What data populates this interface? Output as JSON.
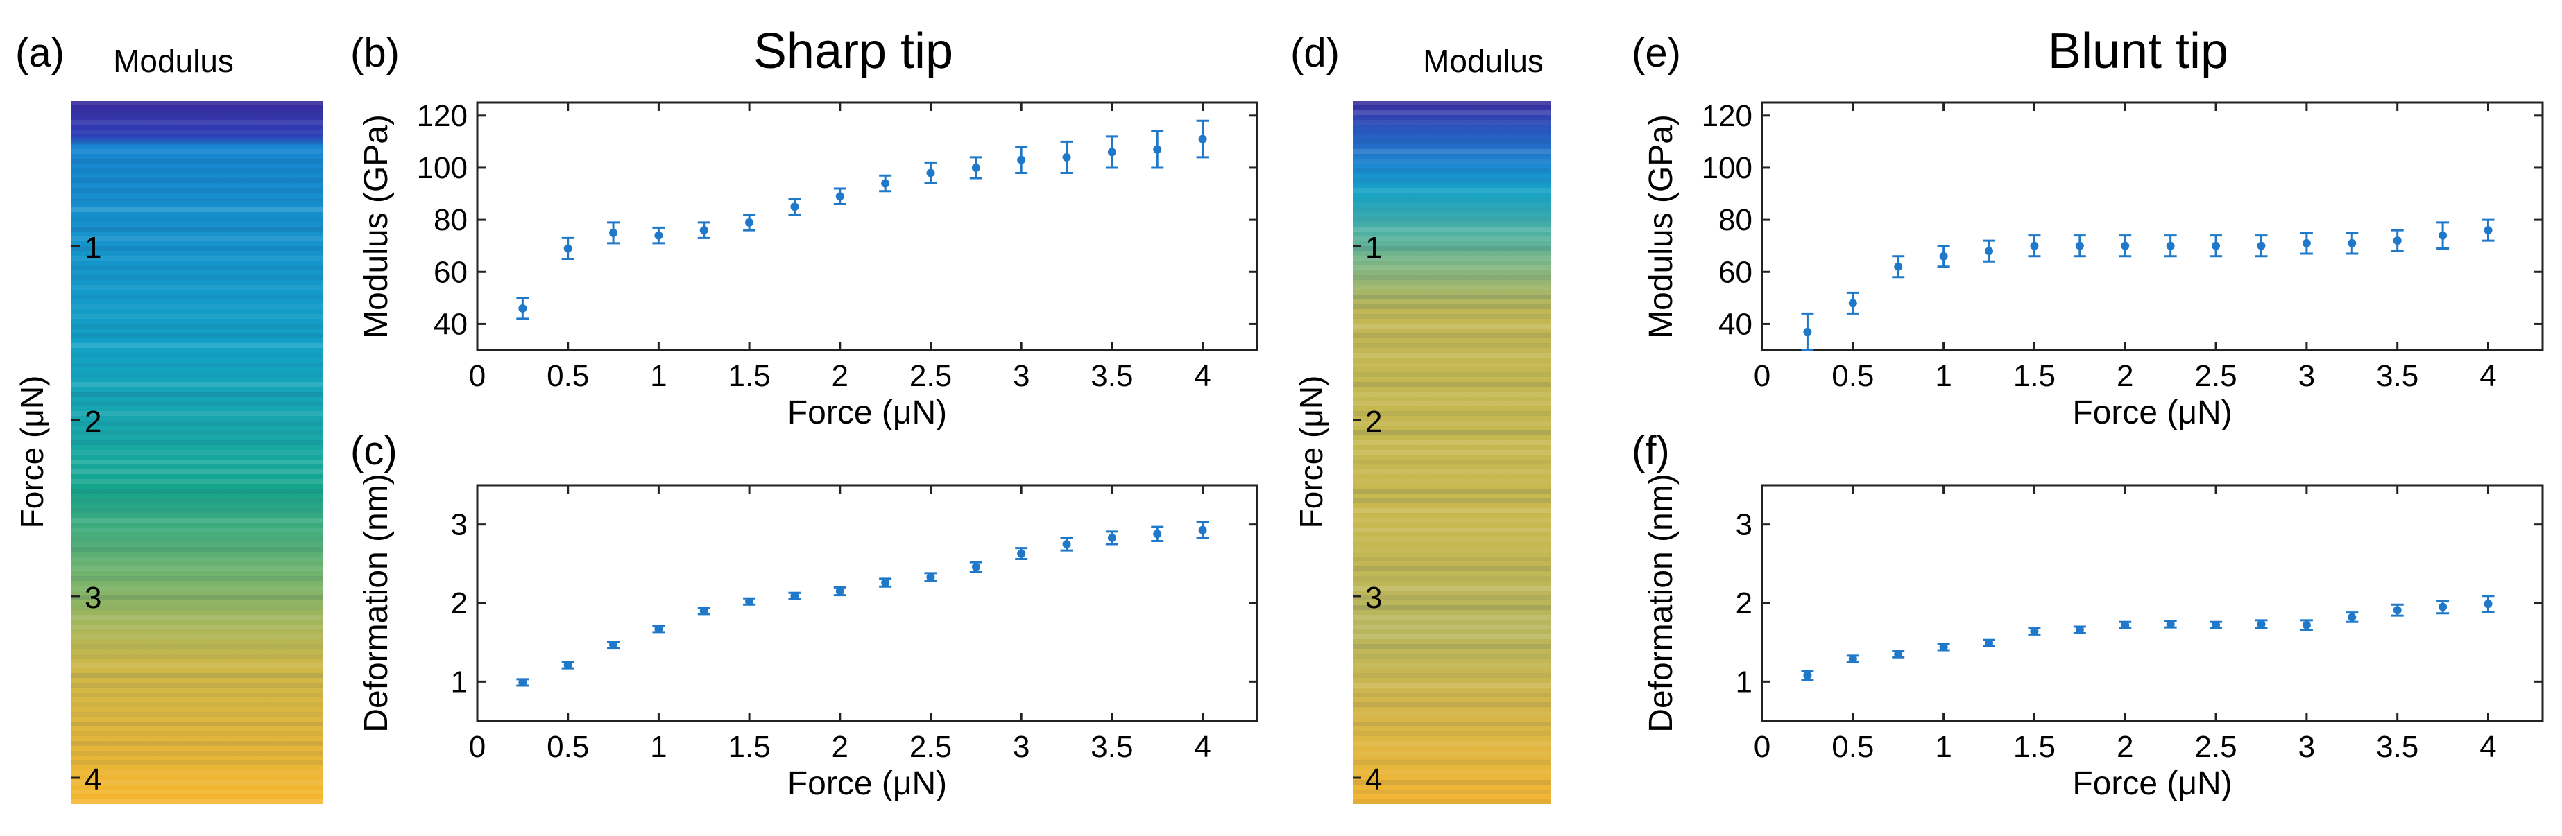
{
  "figure": {
    "panel_labels": {
      "a": "(a)",
      "b": "(b)",
      "c": "(c)",
      "d": "(d)",
      "e": "(e)",
      "f": "(f)"
    },
    "column_titles": {
      "sharp": "Sharp tip",
      "blunt": "Blunt tip"
    },
    "map_title": "Modulus",
    "map_axis_label": "Force (μN)",
    "map_ticks": [
      "1",
      "2",
      "3",
      "4"
    ],
    "colors": {
      "series": "#1f78c8",
      "axis": "#222222",
      "map_dark": "#3b1f8f",
      "map_teal": "#1fa3a3",
      "map_yellow": "#f5b935"
    }
  },
  "chart_data": [
    {
      "id": "b",
      "type": "scatter",
      "title": "Sharp tip",
      "xlabel": "Force (μN)",
      "ylabel": "Modulus (GPa)",
      "xlim": [
        0,
        4.3
      ],
      "ylim": [
        30,
        125
      ],
      "xticks": [
        0,
        0.5,
        1,
        1.5,
        2,
        2.5,
        3,
        3.5,
        4
      ],
      "xtick_labels": [
        "0",
        "0.5",
        "1",
        "1.5",
        "2",
        "2.5",
        "3",
        "3.5",
        "4"
      ],
      "yticks": [
        40,
        60,
        80,
        100,
        120
      ],
      "ytick_labels": [
        "40",
        "60",
        "80",
        "100",
        "120"
      ],
      "x": [
        0.25,
        0.5,
        0.75,
        1.0,
        1.25,
        1.5,
        1.75,
        2.0,
        2.25,
        2.5,
        2.75,
        3.0,
        3.25,
        3.5,
        3.75,
        4.0
      ],
      "y": [
        46,
        69,
        75,
        74,
        76,
        79,
        85,
        89,
        94,
        98,
        100,
        103,
        104,
        106,
        107,
        111
      ],
      "err": [
        4,
        4,
        4,
        3,
        3,
        3,
        3,
        3,
        3,
        4,
        4,
        5,
        6,
        6,
        7,
        7
      ]
    },
    {
      "id": "c",
      "type": "scatter",
      "xlabel": "Force (μN)",
      "ylabel": "Deformation (nm)",
      "xlim": [
        0,
        4.3
      ],
      "ylim": [
        0.5,
        3.5
      ],
      "xticks": [
        0,
        0.5,
        1,
        1.5,
        2,
        2.5,
        3,
        3.5,
        4
      ],
      "xtick_labels": [
        "0",
        "0.5",
        "1",
        "1.5",
        "2",
        "2.5",
        "3",
        "3.5",
        "4"
      ],
      "yticks": [
        1,
        2,
        3
      ],
      "ytick_labels": [
        "1",
        "2",
        "3"
      ],
      "x": [
        0.25,
        0.5,
        0.75,
        1.0,
        1.25,
        1.5,
        1.75,
        2.0,
        2.25,
        2.5,
        2.75,
        3.0,
        3.25,
        3.5,
        3.75,
        4.0
      ],
      "y": [
        0.99,
        1.21,
        1.47,
        1.67,
        1.9,
        2.02,
        2.09,
        2.15,
        2.26,
        2.33,
        2.46,
        2.63,
        2.75,
        2.83,
        2.88,
        2.93
      ],
      "err": [
        0.04,
        0.04,
        0.04,
        0.04,
        0.04,
        0.04,
        0.04,
        0.05,
        0.05,
        0.05,
        0.06,
        0.07,
        0.08,
        0.08,
        0.09,
        0.1
      ]
    },
    {
      "id": "e",
      "type": "scatter",
      "title": "Blunt tip",
      "xlabel": "Force (μN)",
      "ylabel": "Modulus (GPa)",
      "xlim": [
        0,
        4.3
      ],
      "ylim": [
        30,
        125
      ],
      "xticks": [
        0,
        0.5,
        1,
        1.5,
        2,
        2.5,
        3,
        3.5,
        4
      ],
      "xtick_labels": [
        "0",
        "0.5",
        "1",
        "1.5",
        "2",
        "2.5",
        "3",
        "3.5",
        "4"
      ],
      "yticks": [
        40,
        60,
        80,
        100,
        120
      ],
      "ytick_labels": [
        "40",
        "60",
        "80",
        "100",
        "120"
      ],
      "x": [
        0.25,
        0.5,
        0.75,
        1.0,
        1.25,
        1.5,
        1.75,
        2.0,
        2.25,
        2.5,
        2.75,
        3.0,
        3.25,
        3.5,
        3.75,
        4.0
      ],
      "y": [
        37,
        48,
        62,
        66,
        68,
        70,
        70,
        70,
        70,
        70,
        70,
        71,
        71,
        72,
        74,
        76
      ],
      "err": [
        7,
        4,
        4,
        4,
        4,
        4,
        4,
        4,
        4,
        4,
        4,
        4,
        4,
        4,
        5,
        4
      ]
    },
    {
      "id": "f",
      "type": "scatter",
      "xlabel": "Force (μN)",
      "ylabel": "Deformation (nm)",
      "xlim": [
        0,
        4.3
      ],
      "ylim": [
        0.5,
        3.5
      ],
      "xticks": [
        0,
        0.5,
        1,
        1.5,
        2,
        2.5,
        3,
        3.5,
        4
      ],
      "xtick_labels": [
        "0",
        "0.5",
        "1",
        "1.5",
        "2",
        "2.5",
        "3",
        "3.5",
        "4"
      ],
      "yticks": [
        1,
        2,
        3
      ],
      "ytick_labels": [
        "1",
        "2",
        "3"
      ],
      "x": [
        0.25,
        0.5,
        0.75,
        1.0,
        1.25,
        1.5,
        1.75,
        2.0,
        2.25,
        2.5,
        2.75,
        3.0,
        3.25,
        3.5,
        3.75,
        4.0
      ],
      "y": [
        1.08,
        1.29,
        1.35,
        1.44,
        1.49,
        1.64,
        1.66,
        1.72,
        1.73,
        1.72,
        1.73,
        1.72,
        1.82,
        1.91,
        1.95,
        1.99
      ],
      "err": [
        0.06,
        0.04,
        0.04,
        0.04,
        0.04,
        0.04,
        0.04,
        0.04,
        0.04,
        0.04,
        0.05,
        0.06,
        0.06,
        0.07,
        0.08,
        0.1
      ]
    }
  ]
}
